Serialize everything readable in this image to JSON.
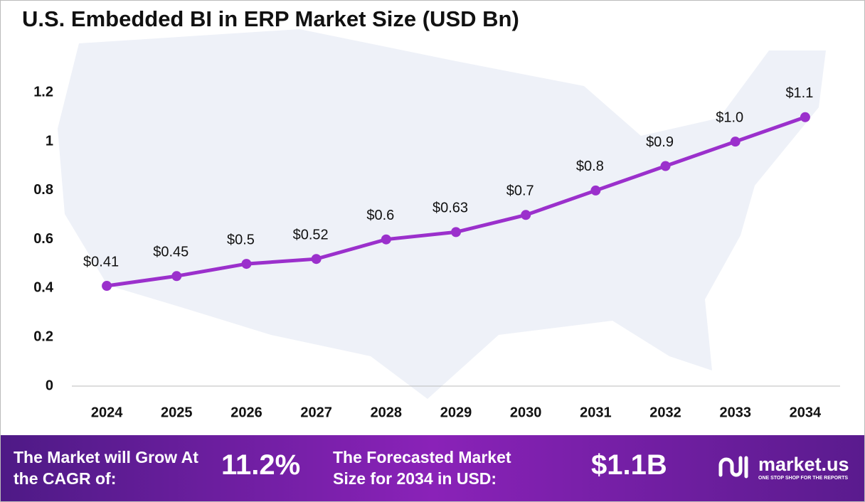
{
  "chart_data": {
    "type": "line",
    "title": "U.S. Embedded BI in ERP Market Size (USD Bn)",
    "categories": [
      "2024",
      "2025",
      "2026",
      "2027",
      "2028",
      "2029",
      "2030",
      "2031",
      "2032",
      "2033",
      "2034"
    ],
    "values": [
      0.41,
      0.45,
      0.5,
      0.52,
      0.6,
      0.63,
      0.7,
      0.8,
      0.9,
      1.0,
      1.1
    ],
    "value_labels": [
      "$0.41",
      "$0.45",
      "$0.5",
      "$0.52",
      "$0.6",
      "$0.63",
      "$0.7",
      "$0.8",
      "$0.9",
      "$1.0",
      "$1.1"
    ],
    "color": "#9b30cc",
    "ylim": [
      0,
      1.3
    ],
    "yticks": [
      0,
      0.2,
      0.4,
      0.6,
      0.8,
      1,
      1.2
    ],
    "grid": false
  },
  "footer": {
    "cagr_text": "The Market will Grow At the CAGR of:",
    "cagr_value": "11.2%",
    "forecast_text": "The Forecasted Market Size for 2034 in USD:",
    "forecast_value": "$1.1B",
    "brand": "market.us",
    "tagline": "ONE STOP SHOP FOR THE REPORTS"
  }
}
